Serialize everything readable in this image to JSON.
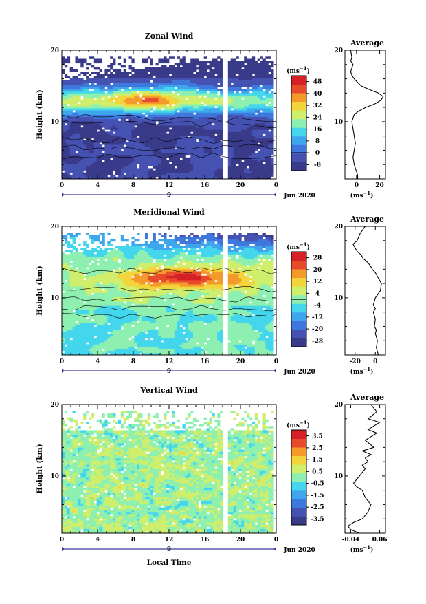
{
  "colors": {
    "background": "#ffffff",
    "axis": "#000000",
    "palette": [
      "#3a3a8a",
      "#4652b2",
      "#3f78dc",
      "#3fa6ee",
      "#43d6ec",
      "#8ef0b0",
      "#cfee6c",
      "#f3d43b",
      "#f39a2a",
      "#e84a2c",
      "#d61f26"
    ]
  },
  "chart_data": [
    {
      "type": "heatmap",
      "title": "Zonal Wind",
      "xlabel": "",
      "ylabel": "Height (km)",
      "xlim": [
        0,
        24
      ],
      "ylim": [
        2,
        20
      ],
      "xticks": [
        "0",
        "4",
        "8",
        "12",
        "16",
        "20",
        "0"
      ],
      "yticks": [
        "10",
        "20"
      ],
      "day_labels": [
        "9"
      ],
      "date_label": "Jun 2020",
      "colorbar": {
        "unit": "(ms",
        "unit_exp": "−1",
        "ticks": [
          "48",
          "40",
          "32",
          "24",
          "16",
          "8",
          "0",
          "-8"
        ],
        "range": [
          -12,
          52
        ],
        "zero_line": 0
      },
      "profile": {
        "title": "Average",
        "xlabel": "(ms",
        "xlabel_exp": "−1",
        "xticks": [
          "0",
          "20"
        ],
        "yticks": [
          "10",
          "20"
        ],
        "xlim": [
          -10,
          25
        ],
        "ylim": [
          2,
          20
        ],
        "x": [
          1,
          1,
          0,
          -1,
          -2,
          -3,
          -2,
          -1,
          -2,
          -3,
          -4,
          -2,
          2,
          8,
          16,
          21,
          23,
          19,
          11,
          4,
          1,
          -2,
          -4,
          -5,
          -4,
          -3,
          -5,
          -4,
          -5
        ],
        "heights": [
          2,
          2.5,
          3,
          3.5,
          4,
          5,
          6,
          7,
          8,
          9,
          10,
          11,
          11.5,
          12,
          12.5,
          13,
          13.5,
          14,
          14.5,
          15,
          15.5,
          16,
          16.5,
          17,
          17.5,
          18,
          18.5,
          19,
          20
        ]
      }
    },
    {
      "type": "heatmap",
      "title": "Meridional Wind",
      "xlabel": "",
      "ylabel": "Height (km)",
      "xlim": [
        0,
        24
      ],
      "ylim": [
        2,
        20
      ],
      "xticks": [
        "0",
        "4",
        "8",
        "12",
        "16",
        "20",
        "0"
      ],
      "yticks": [
        "10",
        "20"
      ],
      "day_labels": [
        "9"
      ],
      "date_label": "Jun 2020",
      "colorbar": {
        "unit": "(ms",
        "unit_exp": "−1",
        "ticks": [
          "28",
          "20",
          "12",
          "4",
          "-4",
          "-12",
          "-20",
          "-28"
        ],
        "range": [
          -32,
          32
        ],
        "zero_line": 0
      },
      "profile": {
        "title": "Average",
        "xlabel": "(ms",
        "xlabel_exp": "−1",
        "xticks": [
          "-20",
          "0"
        ],
        "yticks": [
          "10",
          "20"
        ],
        "xlim": [
          -30,
          10
        ],
        "ylim": [
          2,
          20
        ],
        "x": [
          3,
          2,
          1,
          2,
          0,
          1,
          -1,
          0,
          -2,
          0,
          -2,
          0,
          5,
          6,
          4,
          2,
          0,
          -3,
          -5,
          -8,
          -12,
          -14,
          -18,
          -20,
          -22,
          -18,
          -15,
          -10
        ],
        "heights": [
          2,
          2.5,
          3,
          4,
          5,
          5.5,
          6,
          7,
          8,
          8.5,
          9,
          10,
          11,
          12,
          12.5,
          13,
          13.5,
          14,
          14.5,
          15,
          15.5,
          16,
          16.5,
          17,
          17.5,
          18,
          19,
          20
        ]
      }
    },
    {
      "type": "heatmap",
      "title": "Vertical Wind",
      "xlabel": "Local Time",
      "ylabel": "Height (km)",
      "xlim": [
        0,
        24
      ],
      "ylim": [
        2,
        20
      ],
      "xticks": [
        "0",
        "4",
        "8",
        "12",
        "16",
        "20",
        "0"
      ],
      "yticks": [
        "10",
        "20"
      ],
      "day_labels": [
        "9"
      ],
      "date_label": "Jun 2020",
      "colorbar": {
        "unit": "(ms",
        "unit_exp": "−1",
        "ticks": [
          "3.5",
          "2.5",
          "1.5",
          "0.5",
          "-0.5",
          "-1.5",
          "-2.5",
          "-3.5"
        ],
        "range": [
          -4,
          4
        ],
        "zero_line": null
      },
      "profile": {
        "title": "Average",
        "xlabel": "(ms",
        "xlabel_exp": "−1",
        "xticks": [
          "-0.04",
          "0.06"
        ],
        "yticks": [
          "10",
          "20"
        ],
        "xlim": [
          -0.06,
          0.08
        ],
        "ylim": [
          2,
          20
        ],
        "x": [
          -0.01,
          -0.04,
          -0.05,
          -0.03,
          0.0,
          0.02,
          0.03,
          0.01,
          0.0,
          -0.02,
          -0.03,
          -0.01,
          0.01,
          0.0,
          0.02,
          0.01,
          0.03,
          0.0,
          0.04,
          0.01,
          0.03,
          0.05,
          0.02,
          0.04,
          0.06,
          0.02,
          0.05,
          0.03
        ],
        "heights": [
          2,
          2.5,
          3,
          3.5,
          4,
          5,
          6,
          7,
          8,
          8.5,
          9,
          10,
          11,
          11.5,
          12,
          12.5,
          13,
          13.5,
          14,
          15,
          15.5,
          16,
          16.5,
          17,
          17.5,
          18,
          19,
          20
        ]
      }
    }
  ]
}
